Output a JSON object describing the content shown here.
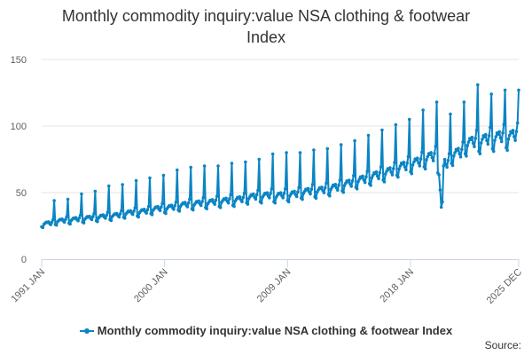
{
  "chart_data": {
    "type": "line",
    "title_lines": [
      "Monthly commodity inquiry:value NSA clothing & footwear",
      "Index"
    ],
    "xlabel": "",
    "ylabel": "",
    "ylim": [
      0,
      150
    ],
    "y_ticks": [
      "0",
      "50",
      "100",
      "150"
    ],
    "x_range": [
      1991,
      2025.917
    ],
    "x_tick_labels": [
      {
        "label": "1991 JAN",
        "x": 1991
      },
      {
        "label": "2000 JAN",
        "x": 2000
      },
      {
        "label": "2009 JAN",
        "x": 2009
      },
      {
        "label": "2018 JAN",
        "x": 2018
      },
      {
        "label": "2025 DEC",
        "x": 2025.917
      }
    ],
    "grid": true,
    "legend_position": "bottom-center",
    "series": [
      {
        "name": "Monthly commodity inquiry:value NSA clothing & footwear Index",
        "color": "#0b84c3",
        "annual_base": [
          {
            "year": 1991,
            "base": 27,
            "dec_peak": 44
          },
          {
            "year": 1992,
            "base": 29,
            "dec_peak": 45
          },
          {
            "year": 1993,
            "base": 30,
            "dec_peak": 49
          },
          {
            "year": 1994,
            "base": 31,
            "dec_peak": 51
          },
          {
            "year": 1995,
            "base": 32,
            "dec_peak": 55
          },
          {
            "year": 1996,
            "base": 33,
            "dec_peak": 56
          },
          {
            "year": 1997,
            "base": 35,
            "dec_peak": 59
          },
          {
            "year": 1998,
            "base": 36,
            "dec_peak": 61
          },
          {
            "year": 1999,
            "base": 38,
            "dec_peak": 63
          },
          {
            "year": 2000,
            "base": 39,
            "dec_peak": 67
          },
          {
            "year": 2001,
            "base": 41,
            "dec_peak": 69
          },
          {
            "year": 2002,
            "base": 42,
            "dec_peak": 70
          },
          {
            "year": 2003,
            "base": 43,
            "dec_peak": 70
          },
          {
            "year": 2004,
            "base": 44,
            "dec_peak": 72
          },
          {
            "year": 2005,
            "base": 45,
            "dec_peak": 73
          },
          {
            "year": 2006,
            "base": 47,
            "dec_peak": 75
          },
          {
            "year": 2007,
            "base": 48,
            "dec_peak": 79
          },
          {
            "year": 2008,
            "base": 48,
            "dec_peak": 80
          },
          {
            "year": 2009,
            "base": 49,
            "dec_peak": 80
          },
          {
            "year": 2010,
            "base": 51,
            "dec_peak": 82
          },
          {
            "year": 2011,
            "base": 52,
            "dec_peak": 83
          },
          {
            "year": 2012,
            "base": 54,
            "dec_peak": 86
          },
          {
            "year": 2013,
            "base": 57,
            "dec_peak": 89
          },
          {
            "year": 2014,
            "base": 60,
            "dec_peak": 93
          },
          {
            "year": 2015,
            "base": 63,
            "dec_peak": 97
          },
          {
            "year": 2016,
            "base": 66,
            "dec_peak": 101
          },
          {
            "year": 2017,
            "base": 70,
            "dec_peak": 105
          },
          {
            "year": 2018,
            "base": 73,
            "dec_peak": 112
          },
          {
            "year": 2019,
            "base": 77,
            "dec_peak": 118
          },
          {
            "year": 2020,
            "base": 72,
            "dec_peak": 109
          },
          {
            "year": 2021,
            "base": 80,
            "dec_peak": 118
          },
          {
            "year": 2022,
            "base": 88,
            "dec_peak": 131
          },
          {
            "year": 2023,
            "base": 90,
            "dec_peak": 124
          },
          {
            "year": 2024,
            "base": 92,
            "dec_peak": 127
          },
          {
            "year": 2025,
            "base": 93,
            "dec_peak": 127
          }
        ],
        "seasonal_factors": [
          0.9,
          0.88,
          0.97,
          1.0,
          1.03,
          1.02,
          1.04,
          0.99,
          0.96,
          1.03,
          1.1,
          1.0
        ],
        "covid_dips": [
          {
            "x": 2020.167,
            "value": 52
          },
          {
            "x": 2020.25,
            "value": 39
          },
          {
            "x": 2020.333,
            "value": 43
          },
          {
            "x": 2020.417,
            "value": 70
          }
        ]
      }
    ]
  },
  "credits": {
    "label": "Source:"
  }
}
